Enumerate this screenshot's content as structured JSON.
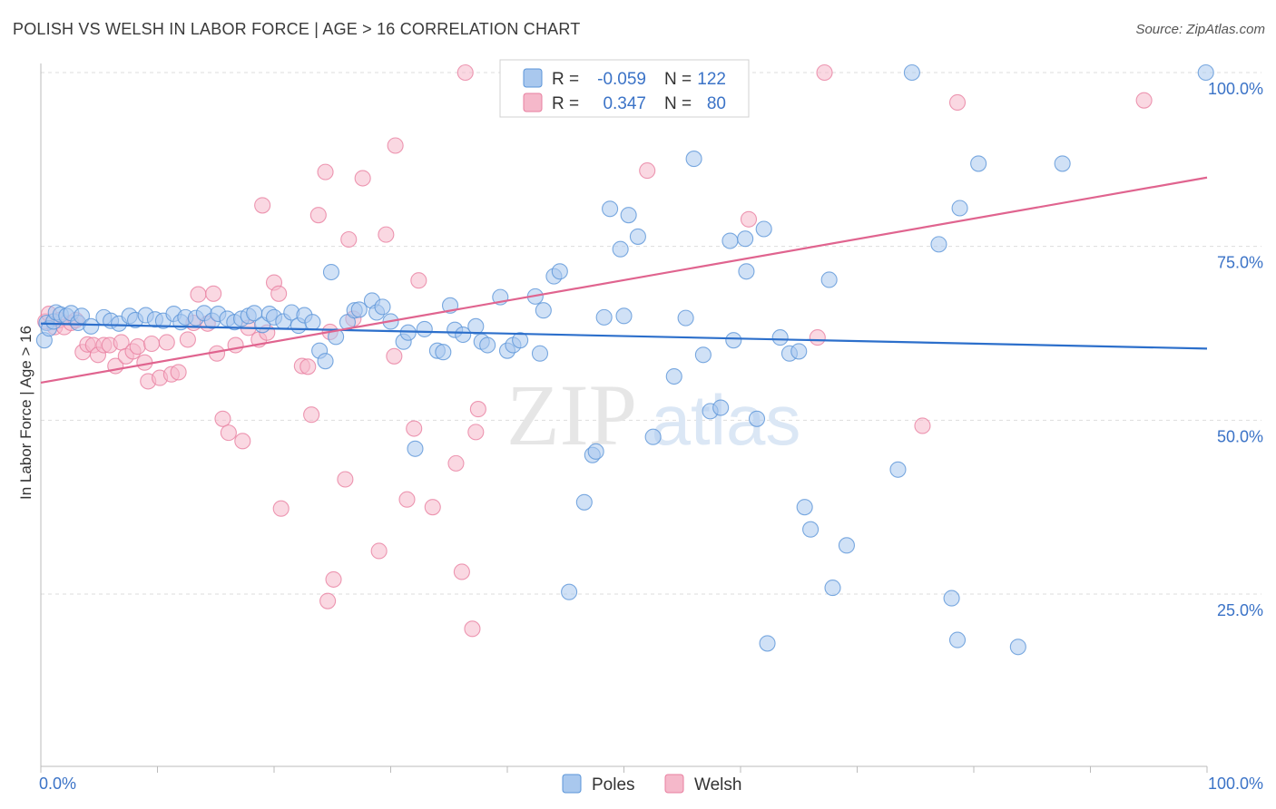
{
  "header": {
    "title": "POLISH VS WELSH IN LABOR FORCE | AGE > 16 CORRELATION CHART",
    "source": "Source: ZipAtlas.com"
  },
  "watermark": {
    "zip": "ZIP",
    "atlas": "atlas"
  },
  "legend_top": {
    "rows": [
      {
        "r_label": "R =",
        "r_value": "-0.059",
        "n_label": "N =",
        "n_value": "122",
        "color": "#a9c8ee"
      },
      {
        "r_label": "R =",
        "r_value": "0.347",
        "n_label": "N =",
        "n_value": "80",
        "color": "#f5b8ca"
      }
    ]
  },
  "legend_bottom": {
    "items": [
      {
        "label": "Poles",
        "color": "#a9c8ee"
      },
      {
        "label": "Welsh",
        "color": "#f5b8ca"
      }
    ]
  },
  "colors": {
    "poles_fill": "#a9c8ee",
    "poles_stroke": "#5b95d8",
    "poles_line": "#2c6fcb",
    "welsh_fill": "#f5b8ca",
    "welsh_stroke": "#e87fa0",
    "welsh_line": "#e0648f",
    "value_text": "#3b73c7",
    "grid": "#dddddd"
  },
  "chart_data": {
    "type": "scatter",
    "title": "POLISH VS WELSH IN LABOR FORCE | AGE > 16 CORRELATION CHART",
    "xlabel": "",
    "ylabel": "In Labor Force | Age > 16",
    "xlim": [
      0,
      100
    ],
    "ylim": [
      0,
      105
    ],
    "x_tick_labels": [
      "0.0%",
      "100.0%"
    ],
    "y_ticks": [
      25,
      50,
      75,
      100
    ],
    "y_tick_labels": [
      "25.0%",
      "50.0%",
      "75.0%",
      "100.0%"
    ],
    "grid": true,
    "legend_position": "top-center",
    "series": [
      {
        "name": "Poles",
        "r": -0.059,
        "n": 122,
        "trend": {
          "x": [
            0,
            100
          ],
          "y": [
            63.9,
            60.3
          ]
        },
        "points": [
          [
            0.3,
            61.5
          ],
          [
            0.5,
            64
          ],
          [
            0.7,
            63.2
          ],
          [
            1.1,
            64.2
          ],
          [
            1.3,
            65.5
          ],
          [
            1.7,
            65.2
          ],
          [
            2.2,
            65
          ],
          [
            2.6,
            65.4
          ],
          [
            3.2,
            64
          ],
          [
            3.5,
            65
          ],
          [
            4.3,
            63.5
          ],
          [
            5.4,
            64.8
          ],
          [
            6.0,
            64.3
          ],
          [
            6.7,
            63.9
          ],
          [
            7.6,
            65
          ],
          [
            8.1,
            64.4
          ],
          [
            9.0,
            65.1
          ],
          [
            9.8,
            64.5
          ],
          [
            10.5,
            64.3
          ],
          [
            11.4,
            65.3
          ],
          [
            12.0,
            64.1
          ],
          [
            12.4,
            64.8
          ],
          [
            13.3,
            64.7
          ],
          [
            14.0,
            65.4
          ],
          [
            14.7,
            64.3
          ],
          [
            15.2,
            65.3
          ],
          [
            16.0,
            64.6
          ],
          [
            16.6,
            64.1
          ],
          [
            17.2,
            64.6
          ],
          [
            17.8,
            65
          ],
          [
            18.3,
            65.4
          ],
          [
            19.0,
            63.7
          ],
          [
            19.6,
            65.3
          ],
          [
            20.0,
            64.8
          ],
          [
            20.8,
            64.2
          ],
          [
            21.5,
            65.5
          ],
          [
            22.1,
            63.6
          ],
          [
            22.6,
            65.1
          ],
          [
            23.3,
            64.1
          ],
          [
            23.9,
            60
          ],
          [
            24.4,
            58.5
          ],
          [
            24.9,
            71.3
          ],
          [
            25.3,
            62
          ],
          [
            26.3,
            64.1
          ],
          [
            26.9,
            65.8
          ],
          [
            27.3,
            65.9
          ],
          [
            28.4,
            67.2
          ],
          [
            28.8,
            65.5
          ],
          [
            29.3,
            66.3
          ],
          [
            30.0,
            64.2
          ],
          [
            31.1,
            61.3
          ],
          [
            31.5,
            62.6
          ],
          [
            32.1,
            45.9
          ],
          [
            32.9,
            63.1
          ],
          [
            34.0,
            60
          ],
          [
            34.5,
            59.8
          ],
          [
            35.1,
            66.5
          ],
          [
            35.5,
            63
          ],
          [
            36.2,
            62.3
          ],
          [
            37.3,
            63.5
          ],
          [
            37.8,
            61.3
          ],
          [
            38.3,
            60.8
          ],
          [
            39.4,
            67.7
          ],
          [
            40.0,
            60
          ],
          [
            40.5,
            60.8
          ],
          [
            41.1,
            61.5
          ],
          [
            42.4,
            67.8
          ],
          [
            42.8,
            59.6
          ],
          [
            43.1,
            65.8
          ],
          [
            44.0,
            70.7
          ],
          [
            44.5,
            71.4
          ],
          [
            45.3,
            25.3
          ],
          [
            46.6,
            38.2
          ],
          [
            47.3,
            45
          ],
          [
            47.6,
            45.5
          ],
          [
            48.3,
            64.8
          ],
          [
            48.8,
            80.4
          ],
          [
            49.7,
            74.6
          ],
          [
            50.0,
            65
          ],
          [
            50.4,
            79.5
          ],
          [
            51.2,
            76.4
          ],
          [
            52.5,
            47.6
          ],
          [
            54.3,
            56.3
          ],
          [
            55.3,
            64.7
          ],
          [
            56.0,
            87.6
          ],
          [
            56.8,
            59.4
          ],
          [
            57.4,
            51.3
          ],
          [
            58.3,
            51.8
          ],
          [
            59.1,
            75.8
          ],
          [
            59.4,
            61.5
          ],
          [
            60.4,
            76.1
          ],
          [
            60.5,
            71.4
          ],
          [
            61.4,
            50.2
          ],
          [
            62.0,
            77.5
          ],
          [
            62.3,
            17.9
          ],
          [
            63.4,
            61.9
          ],
          [
            64.2,
            59.6
          ],
          [
            65.0,
            59.9
          ],
          [
            65.5,
            37.5
          ],
          [
            66.0,
            34.3
          ],
          [
            67.6,
            70.2
          ],
          [
            67.9,
            25.9
          ],
          [
            69.1,
            32
          ],
          [
            73.5,
            42.9
          ],
          [
            74.7,
            100
          ],
          [
            77.0,
            75.3
          ],
          [
            78.1,
            24.4
          ],
          [
            78.6,
            18.4
          ],
          [
            78.8,
            80.5
          ],
          [
            80.4,
            86.9
          ],
          [
            83.8,
            17.4
          ],
          [
            87.6,
            86.9
          ],
          [
            99.9,
            100
          ]
        ]
      },
      {
        "name": "Welsh",
        "r": 0.347,
        "n": 80,
        "trend": {
          "x": [
            0,
            100
          ],
          "y": [
            55.4,
            84.9
          ]
        },
        "points": [
          [
            0.4,
            64.2
          ],
          [
            0.7,
            65.3
          ],
          [
            1.2,
            63.4
          ],
          [
            1.6,
            64.4
          ],
          [
            2.0,
            63.4
          ],
          [
            2.6,
            64
          ],
          [
            3.0,
            64.4
          ],
          [
            3.6,
            59.8
          ],
          [
            4.0,
            60.9
          ],
          [
            4.5,
            60.8
          ],
          [
            4.9,
            59.4
          ],
          [
            5.4,
            60.8
          ],
          [
            5.9,
            60.8
          ],
          [
            6.4,
            57.8
          ],
          [
            6.9,
            61.2
          ],
          [
            7.3,
            59.2
          ],
          [
            7.9,
            59.9
          ],
          [
            8.3,
            60.6
          ],
          [
            8.9,
            58.3
          ],
          [
            9.2,
            55.6
          ],
          [
            9.5,
            61
          ],
          [
            10.2,
            56.1
          ],
          [
            10.8,
            61.2
          ],
          [
            11.2,
            56.6
          ],
          [
            11.8,
            56.9
          ],
          [
            12.6,
            61.6
          ],
          [
            13.1,
            64
          ],
          [
            13.5,
            68.1
          ],
          [
            14.3,
            63.9
          ],
          [
            14.8,
            68.2
          ],
          [
            15.1,
            59.6
          ],
          [
            15.6,
            50.2
          ],
          [
            16.1,
            48.2
          ],
          [
            16.7,
            60.8
          ],
          [
            17.3,
            47
          ],
          [
            17.8,
            63.3
          ],
          [
            18.7,
            61.6
          ],
          [
            19.0,
            80.9
          ],
          [
            19.4,
            62.6
          ],
          [
            20.0,
            69.8
          ],
          [
            20.4,
            68.2
          ],
          [
            20.6,
            37.3
          ],
          [
            22.4,
            57.8
          ],
          [
            22.9,
            57.7
          ],
          [
            23.2,
            50.8
          ],
          [
            23.8,
            79.5
          ],
          [
            24.4,
            85.7
          ],
          [
            24.6,
            24
          ],
          [
            24.8,
            62.7
          ],
          [
            25.1,
            27.1
          ],
          [
            26.1,
            41.5
          ],
          [
            26.4,
            76
          ],
          [
            26.8,
            64.6
          ],
          [
            27.6,
            84.8
          ],
          [
            29.0,
            31.2
          ],
          [
            29.6,
            76.7
          ],
          [
            30.3,
            59.2
          ],
          [
            30.4,
            89.5
          ],
          [
            31.4,
            38.6
          ],
          [
            32.0,
            48.8
          ],
          [
            32.4,
            70.1
          ],
          [
            33.6,
            37.5
          ],
          [
            35.6,
            43.8
          ],
          [
            36.1,
            28.2
          ],
          [
            36.4,
            100
          ],
          [
            37.0,
            20
          ],
          [
            37.3,
            48.3
          ],
          [
            37.5,
            51.6
          ],
          [
            41.2,
            100
          ],
          [
            52.0,
            85.9
          ],
          [
            60.7,
            78.9
          ],
          [
            66.6,
            61.9
          ],
          [
            67.2,
            100
          ],
          [
            75.6,
            49.2
          ],
          [
            78.6,
            95.7
          ],
          [
            94.6,
            96
          ]
        ]
      }
    ]
  }
}
